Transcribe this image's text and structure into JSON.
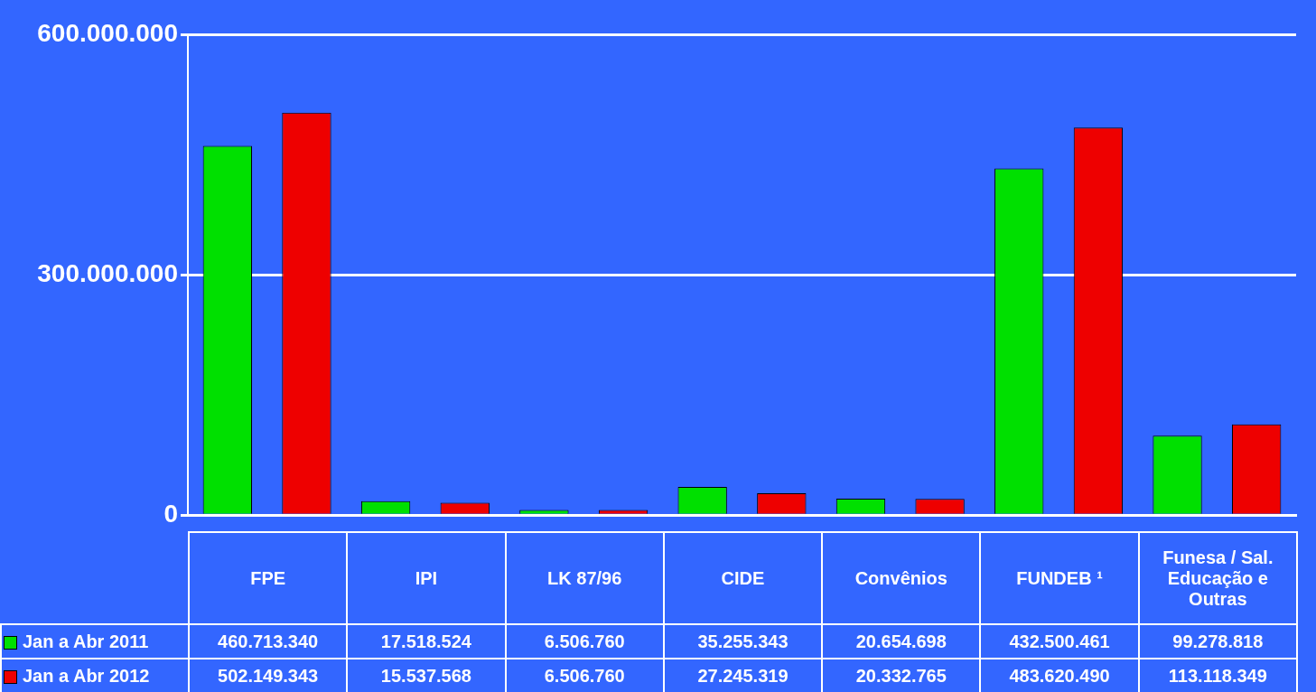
{
  "chart_data": {
    "type": "bar",
    "categories": [
      "FPE",
      "IPI",
      "LK 87/96",
      "CIDE",
      "Convênios",
      "FUNDEB ¹",
      "Funesa / Sal. Educação e Outras"
    ],
    "series": [
      {
        "name": "Jan a Abr 2011",
        "color": "#00e000",
        "values": [
          460713340,
          17518524,
          6506760,
          35255343,
          20654698,
          432500461,
          99278818
        ],
        "value_labels": [
          "460.713.340",
          "17.518.524",
          "6.506.760",
          "35.255.343",
          "20.654.698",
          "432.500.461",
          "99.278.818"
        ]
      },
      {
        "name": "Jan a Abr 2012",
        "color": "#ee0000",
        "values": [
          502149343,
          15537568,
          6506760,
          27245319,
          20332765,
          483620490,
          113118349
        ],
        "value_labels": [
          "502.149.343",
          "15.537.568",
          "6.506.760",
          "27.245.319",
          "20.332.765",
          "483.620.490",
          "113.118.349"
        ]
      }
    ],
    "ylim": [
      0,
      600000000
    ],
    "yticks": [
      {
        "value": 0,
        "label": "0"
      },
      {
        "value": 300000000,
        "label": "300.000.000"
      },
      {
        "value": 600000000,
        "label": "600.000.000"
      }
    ],
    "grid": "y",
    "legend": "bottom left"
  }
}
